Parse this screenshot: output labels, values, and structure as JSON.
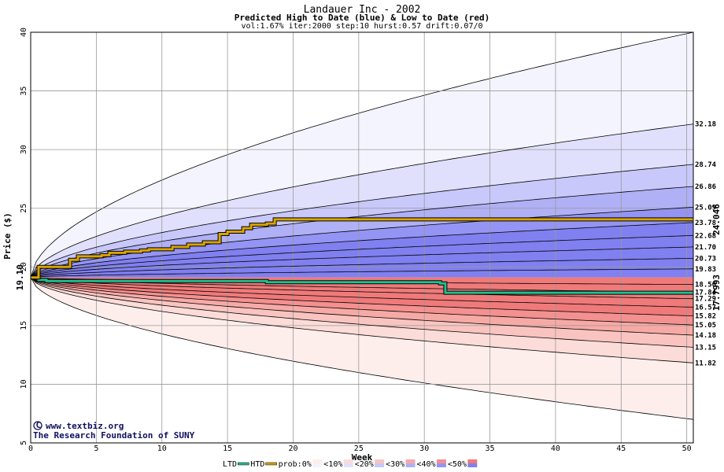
{
  "chart_data": {
    "type": "area",
    "title": "Landauer Inc - 2002",
    "subtitle": "Predicted High to Date (blue) &  Low to Date (red)",
    "params": "vol:1.67% iter:2000 step:10 hurst:0.57 drift:0.07/0",
    "xlabel": "Week",
    "ylabel": "Price ($)",
    "xlim": [
      0,
      50.5
    ],
    "ylim": [
      5,
      40
    ],
    "xticks": [
      0,
      5,
      10,
      15,
      20,
      25,
      30,
      35,
      40,
      45,
      50
    ],
    "yticks": [
      5,
      10,
      15,
      20,
      25,
      30,
      35,
      40
    ],
    "grid": true,
    "start_price_label": "19.10",
    "htd_end_label": "24.046",
    "ltd_end_label": "17.7993",
    "right_labels": [
      "32.18",
      "28.74",
      "26.86",
      "25.09",
      "23.78",
      "22.68",
      "21.70",
      "20.73",
      "19.83",
      "18.50",
      "17.84",
      "17.29",
      "16.57",
      "15.82",
      "15.05",
      "14.18",
      "13.15",
      "11.82"
    ],
    "start": 19.1,
    "high_bands": [
      {
        "name": "prob:0%",
        "end": 40.0,
        "color": "#f4f4fe"
      },
      {
        "name": "<10%",
        "end": 32.18,
        "color": "#e0e0fc"
      },
      {
        "name": "<20%",
        "end": 28.74,
        "color": "#c8c8fa"
      },
      {
        "name": "<30%",
        "end": 26.86,
        "color": "#b0b0f7"
      },
      {
        "name": "<40%",
        "end": 25.09,
        "color": "#9494f4"
      },
      {
        "name": "<50%",
        "end": 23.78,
        "color": "#8080f0"
      }
    ],
    "high_lines": [
      32.18,
      28.74,
      26.86,
      25.09,
      23.78,
      22.68,
      21.7,
      20.73,
      19.83
    ],
    "low_bands": [
      {
        "name": "prob:0%",
        "end": 7.0,
        "color": "#fdeeec"
      },
      {
        "name": "<10%",
        "end": 11.82,
        "color": "#fcdcd8"
      },
      {
        "name": "<20%",
        "end": 13.15,
        "color": "#f9c4c0"
      },
      {
        "name": "<30%",
        "end": 14.18,
        "color": "#f6aaa6"
      },
      {
        "name": "<40%",
        "end": 15.05,
        "color": "#f49090"
      },
      {
        "name": "<50%",
        "end": 15.82,
        "color": "#f07a7a"
      }
    ],
    "low_lines": [
      18.5,
      17.84,
      17.29,
      16.57,
      15.82,
      15.05,
      14.18,
      13.15,
      11.82
    ],
    "htd_series": {
      "name": "HTD",
      "color": "#d8a400",
      "x": [
        0,
        0.6,
        1.2,
        2.4,
        3.0,
        3.6,
        5.4,
        6.0,
        7.2,
        8.4,
        9.0,
        10.8,
        12.0,
        13.2,
        14.4,
        15.0,
        16.2,
        16.8,
        18.0,
        18.6,
        50.5
      ],
      "y": [
        19.1,
        20.0,
        20.0,
        20.0,
        20.6,
        20.9,
        21.0,
        21.2,
        21.3,
        21.4,
        21.5,
        21.7,
        21.9,
        22.1,
        22.8,
        23.0,
        23.3,
        23.6,
        23.7,
        24.046,
        24.046
      ]
    },
    "ltd_series": {
      "name": "LTD",
      "color": "#20c090",
      "x": [
        0,
        0.6,
        1.2,
        18.0,
        31.2,
        31.6,
        50.5
      ],
      "y": [
        19.1,
        18.9,
        18.8,
        18.7,
        18.6,
        17.7993,
        17.7993
      ]
    }
  },
  "credits": {
    "line1": "www.textbiz.org",
    "line2": "The Research Foundation of SUNY"
  },
  "legend": {
    "ltd": "LTD",
    "htd": "HTD",
    "items": [
      "prob:0%",
      "<10%",
      "<20%",
      "<30%",
      "<40%",
      "<50%"
    ]
  },
  "colors": {
    "htd": "#d8a400",
    "ltd": "#20c090",
    "grid": "#999999",
    "start_label": "#006000"
  }
}
